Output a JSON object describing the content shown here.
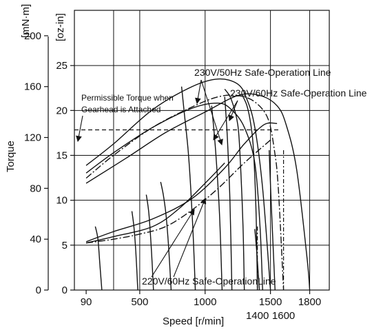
{
  "chart_data": {
    "type": "line",
    "title": "",
    "xlabel": "Speed  [r/min]",
    "ylabel": "Torque",
    "left_axis_unit": "[mN·m]",
    "right_axis_unit": "[oz-in]",
    "xlim": [
      0,
      1950
    ],
    "ylim_mNm": [
      0,
      220
    ],
    "ylim_ozin": [
      0,
      31.15
    ],
    "x_ticks": [
      {
        "label": "90",
        "value": 90
      },
      {
        "label": "500",
        "value": 500
      },
      {
        "label": "1000",
        "value": 1000
      },
      {
        "label": "1500",
        "value": 1500
      },
      {
        "label": "1800",
        "value": 1800
      }
    ],
    "x_ticks_lower": [
      {
        "label": "1400",
        "value": 1400
      },
      {
        "label": "1600",
        "value": 1600
      }
    ],
    "y_ticks_mNm": [
      "0",
      "40",
      "80",
      "120",
      "160",
      "200"
    ],
    "y_ticks_ozin": [
      "0",
      "5",
      "10",
      "15",
      "20",
      "25"
    ],
    "grid": true,
    "annotations": {
      "permissible": "Permissible Torque when",
      "permissible_line2": "Gearhead is Attached",
      "sol_230_50": "230V/50Hz Safe-Operation Line",
      "sol_230_60": "230V/60Hz Safe-Operation Line",
      "sol_220_60": "220V/60Hz Safe-OperationLine"
    },
    "permissible_torque_mNm": 126,
    "series": [
      {
        "style": "solid",
        "x": [
          90,
          300,
          600,
          900,
          1100,
          1250,
          1320,
          1380,
          1440,
          1500
        ],
        "y": [
          98,
          115,
          142,
          160,
          166,
          162,
          150,
          128,
          80,
          0
        ]
      },
      {
        "style": "solid",
        "x": [
          90,
          300,
          600,
          900,
          1100,
          1200,
          1300,
          1380,
          1420,
          1440
        ],
        "y": [
          92,
          108,
          128,
          143,
          147,
          142,
          128,
          100,
          50,
          0
        ]
      },
      {
        "style": "dashdot",
        "x": [
          90,
          300,
          600,
          900,
          1100,
          1250,
          1380,
          1480,
          1530,
          1560,
          1600
        ],
        "y": [
          88,
          106,
          128,
          144,
          152,
          153,
          148,
          135,
          110,
          80,
          0
        ]
      },
      {
        "style": "solid",
        "x": [
          90,
          400,
          700,
          1000,
          1250,
          1420,
          1550,
          1620,
          1700,
          1780,
          1800
        ],
        "y": [
          84,
          104,
          124,
          140,
          153,
          153,
          145,
          130,
          95,
          25,
          0
        ]
      },
      {
        "style": "solid",
        "x": [
          90,
          300,
          600,
          900,
          1150,
          1300,
          1450,
          1550
        ],
        "y": [
          38,
          46,
          56,
          72,
          96,
          115,
          130,
          131
        ]
      },
      {
        "style": "solid",
        "x": [
          90,
          300,
          600,
          800,
          1000,
          1150
        ],
        "y": [
          37,
          42,
          50,
          64,
          84,
          100
        ]
      },
      {
        "style": "dashdot",
        "x": [
          90,
          300,
          500,
          700,
          900,
          1100,
          1300,
          1500
        ],
        "y": [
          37,
          40,
          44,
          50,
          63,
          80,
          100,
          118
        ]
      },
      {
        "style": "solid",
        "x": [
          820,
          840,
          870,
          890,
          910,
          925
        ],
        "y": [
          160,
          140,
          110,
          80,
          40,
          0
        ]
      },
      {
        "style": "solid",
        "x": [
          1050,
          1080,
          1110,
          1130
        ],
        "y": [
          145,
          110,
          60,
          0
        ]
      },
      {
        "style": "solid",
        "x": [
          1150,
          1170,
          1190,
          1205
        ],
        "y": [
          152,
          120,
          70,
          0
        ]
      },
      {
        "style": "solid",
        "x": [
          1150,
          1200,
          1250,
          1270,
          1290,
          1300
        ],
        "y": [
          158,
          150,
          130,
          100,
          50,
          0
        ]
      },
      {
        "style": "solid",
        "x": [
          1280,
          1320,
          1350,
          1370,
          1390,
          1400
        ],
        "y": [
          154,
          145,
          130,
          110,
          60,
          0
        ]
      },
      {
        "style": "solid",
        "x": [
          660,
          680,
          700,
          720,
          740
        ],
        "y": [
          85,
          75,
          60,
          35,
          0
        ]
      },
      {
        "style": "solid",
        "x": [
          440,
          455,
          470,
          485
        ],
        "y": [
          62,
          50,
          30,
          0
        ]
      },
      {
        "style": "solid",
        "x": [
          160,
          180,
          195,
          210
        ],
        "y": [
          50,
          40,
          20,
          0
        ]
      },
      {
        "style": "solid",
        "x": [
          550,
          570,
          590,
          605
        ],
        "y": [
          75,
          60,
          30,
          0
        ]
      },
      {
        "style": "solid",
        "x": [
          1380,
          1395,
          1415
        ],
        "y": [
          48,
          30,
          0
        ]
      },
      {
        "style": "solid",
        "x": [
          1490,
          1505,
          1520,
          1535
        ],
        "y": [
          110,
          70,
          35,
          0
        ]
      }
    ],
    "marker_lines": [
      {
        "x": 1400,
        "y_top_mNm": 50
      },
      {
        "x": 1600,
        "y_top_mNm": 110
      }
    ]
  }
}
